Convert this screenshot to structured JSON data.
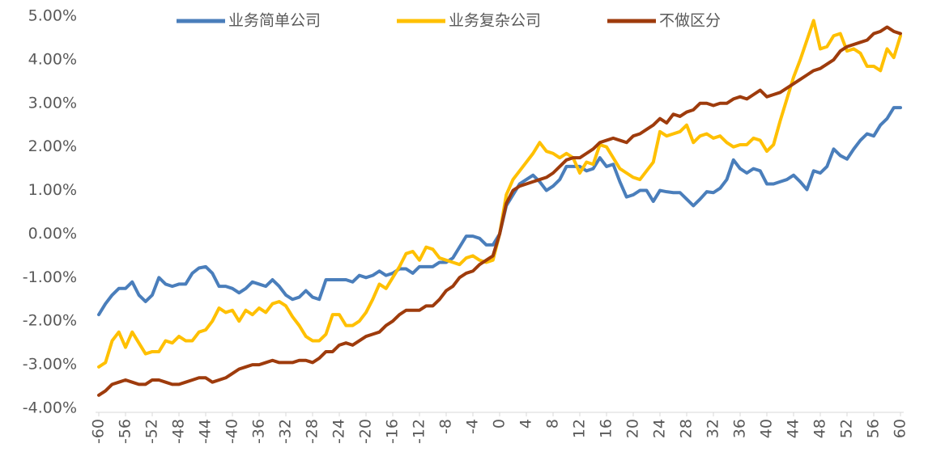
{
  "chart_data": {
    "type": "line",
    "x": [
      -60,
      -59,
      -58,
      -57,
      -56,
      -55,
      -54,
      -53,
      -52,
      -51,
      -50,
      -49,
      -48,
      -47,
      -46,
      -45,
      -44,
      -43,
      -42,
      -41,
      -40,
      -39,
      -38,
      -37,
      -36,
      -35,
      -34,
      -33,
      -32,
      -31,
      -30,
      -29,
      -28,
      -27,
      -26,
      -25,
      -24,
      -23,
      -22,
      -21,
      -20,
      -19,
      -18,
      -17,
      -16,
      -15,
      -14,
      -13,
      -12,
      -11,
      -10,
      -9,
      -8,
      -7,
      -6,
      -5,
      -4,
      -3,
      -2,
      -1,
      0,
      1,
      2,
      3,
      4,
      5,
      6,
      7,
      8,
      9,
      10,
      11,
      12,
      13,
      14,
      15,
      16,
      17,
      18,
      19,
      20,
      21,
      22,
      23,
      24,
      25,
      26,
      27,
      28,
      29,
      30,
      31,
      32,
      33,
      34,
      35,
      36,
      37,
      38,
      39,
      40,
      41,
      42,
      43,
      44,
      45,
      46,
      47,
      48,
      49,
      50,
      51,
      52,
      53,
      54,
      55,
      56,
      57,
      58,
      59,
      60
    ],
    "series": [
      {
        "name": "业务简单公司",
        "color": "#4a7ebb",
        "values": [
          -1.85,
          -1.6,
          -1.4,
          -1.25,
          -1.25,
          -1.1,
          -1.4,
          -1.55,
          -1.4,
          -1.0,
          -1.15,
          -1.2,
          -1.15,
          -1.15,
          -0.9,
          -0.78,
          -0.75,
          -0.9,
          -1.2,
          -1.2,
          -1.25,
          -1.35,
          -1.25,
          -1.1,
          -1.15,
          -1.2,
          -1.05,
          -1.2,
          -1.4,
          -1.5,
          -1.45,
          -1.3,
          -1.45,
          -1.5,
          -1.05,
          -1.05,
          -1.05,
          -1.05,
          -1.1,
          -0.95,
          -1.0,
          -0.95,
          -0.85,
          -0.95,
          -0.9,
          -0.8,
          -0.8,
          -0.9,
          -0.75,
          -0.75,
          -0.75,
          -0.65,
          -0.65,
          -0.55,
          -0.3,
          -0.05,
          -0.05,
          -0.1,
          -0.25,
          -0.25,
          0.0,
          0.65,
          0.9,
          1.15,
          1.25,
          1.35,
          1.2,
          1.0,
          1.1,
          1.25,
          1.55,
          1.55,
          1.55,
          1.45,
          1.5,
          1.75,
          1.55,
          1.6,
          1.2,
          0.85,
          0.9,
          1.0,
          1.0,
          0.75,
          1.0,
          0.97,
          0.95,
          0.95,
          0.8,
          0.65,
          0.8,
          0.97,
          0.95,
          1.05,
          1.25,
          1.7,
          1.5,
          1.4,
          1.5,
          1.45,
          1.15,
          1.15,
          1.2,
          1.25,
          1.35,
          1.2,
          1.02,
          1.45,
          1.4,
          1.55,
          1.95,
          1.8,
          1.72,
          1.95,
          2.15,
          2.3,
          2.25,
          2.5,
          2.65,
          2.9,
          2.9
        ]
      },
      {
        "name": "业务复杂公司",
        "color": "#ffc000",
        "values": [
          -3.05,
          -2.95,
          -2.45,
          -2.25,
          -2.6,
          -2.25,
          -2.5,
          -2.75,
          -2.7,
          -2.7,
          -2.45,
          -2.5,
          -2.35,
          -2.45,
          -2.45,
          -2.25,
          -2.2,
          -2.0,
          -1.7,
          -1.8,
          -1.75,
          -2.0,
          -1.75,
          -1.85,
          -1.7,
          -1.8,
          -1.6,
          -1.55,
          -1.65,
          -1.9,
          -2.1,
          -2.35,
          -2.45,
          -2.45,
          -2.3,
          -1.85,
          -1.85,
          -2.1,
          -2.1,
          -2.0,
          -1.8,
          -1.5,
          -1.15,
          -1.25,
          -1.0,
          -0.75,
          -0.45,
          -0.4,
          -0.6,
          -0.3,
          -0.35,
          -0.55,
          -0.6,
          -0.65,
          -0.7,
          -0.55,
          -0.5,
          -0.6,
          -0.65,
          -0.6,
          0.0,
          0.9,
          1.25,
          1.45,
          1.65,
          1.85,
          2.1,
          1.9,
          1.85,
          1.75,
          1.85,
          1.75,
          1.4,
          1.65,
          1.6,
          2.05,
          2.0,
          1.75,
          1.5,
          1.4,
          1.3,
          1.25,
          1.45,
          1.65,
          2.35,
          2.25,
          2.3,
          2.35,
          2.5,
          2.1,
          2.25,
          2.3,
          2.2,
          2.25,
          2.1,
          2.0,
          2.05,
          2.05,
          2.2,
          2.15,
          1.9,
          2.05,
          2.6,
          3.1,
          3.6,
          4.0,
          4.45,
          4.9,
          4.25,
          4.3,
          4.55,
          4.6,
          4.2,
          4.25,
          4.15,
          3.85,
          3.85,
          3.75,
          4.25,
          4.05,
          4.55
        ]
      },
      {
        "name": "不做区分",
        "color": "#9e3b0c",
        "values": [
          -3.7,
          -3.6,
          -3.45,
          -3.4,
          -3.35,
          -3.4,
          -3.45,
          -3.45,
          -3.35,
          -3.35,
          -3.4,
          -3.45,
          -3.45,
          -3.4,
          -3.35,
          -3.3,
          -3.3,
          -3.4,
          -3.35,
          -3.3,
          -3.2,
          -3.1,
          -3.05,
          -3.0,
          -3.0,
          -2.95,
          -2.9,
          -2.95,
          -2.95,
          -2.95,
          -2.9,
          -2.9,
          -2.95,
          -2.85,
          -2.7,
          -2.7,
          -2.55,
          -2.5,
          -2.55,
          -2.45,
          -2.35,
          -2.3,
          -2.25,
          -2.1,
          -2.0,
          -1.85,
          -1.75,
          -1.75,
          -1.75,
          -1.65,
          -1.65,
          -1.5,
          -1.3,
          -1.2,
          -1.0,
          -0.9,
          -0.85,
          -0.7,
          -0.6,
          -0.5,
          0.0,
          0.7,
          1.0,
          1.1,
          1.15,
          1.2,
          1.25,
          1.3,
          1.4,
          1.55,
          1.7,
          1.75,
          1.75,
          1.85,
          1.95,
          2.1,
          2.15,
          2.2,
          2.15,
          2.1,
          2.25,
          2.3,
          2.4,
          2.5,
          2.65,
          2.55,
          2.75,
          2.7,
          2.8,
          2.85,
          3.0,
          3.0,
          2.95,
          3.0,
          3.0,
          3.1,
          3.15,
          3.1,
          3.2,
          3.3,
          3.15,
          3.2,
          3.25,
          3.35,
          3.45,
          3.55,
          3.65,
          3.75,
          3.8,
          3.9,
          4.0,
          4.2,
          4.3,
          4.35,
          4.4,
          4.45,
          4.6,
          4.65,
          4.75,
          4.65,
          4.6
        ]
      }
    ],
    "xlim": [
      -60,
      60
    ],
    "xticks": [
      -60,
      -56,
      -52,
      -48,
      -44,
      -40,
      -36,
      -32,
      -28,
      -24,
      -20,
      -16,
      -12,
      -8,
      -4,
      0,
      4,
      8,
      12,
      16,
      20,
      24,
      28,
      32,
      36,
      40,
      44,
      48,
      52,
      56,
      60
    ],
    "ylim": [
      -4,
      5
    ],
    "yticks": [
      {
        "value": -4,
        "label": "-4.00%"
      },
      {
        "value": -3,
        "label": "-3.00%"
      },
      {
        "value": -2,
        "label": "-2.00%"
      },
      {
        "value": -1,
        "label": "-1.00%"
      },
      {
        "value": 0,
        "label": "0.00%"
      },
      {
        "value": 1,
        "label": "1.00%"
      },
      {
        "value": 2,
        "label": "2.00%"
      },
      {
        "value": 3,
        "label": "3.00%"
      },
      {
        "value": 4,
        "label": "4.00%"
      },
      {
        "value": 5,
        "label": "5.00%"
      }
    ],
    "legend": "top"
  }
}
